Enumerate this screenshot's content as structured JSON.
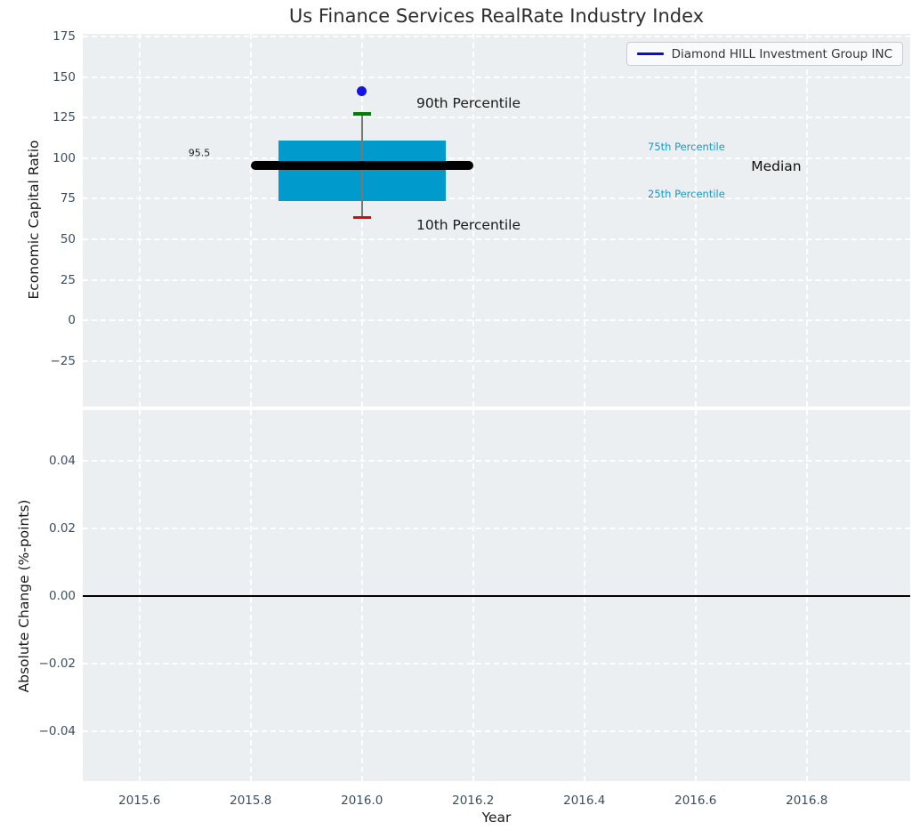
{
  "title": "Us Finance Services RealRate Industry Index",
  "legend": {
    "label": "Diamond HILL Investment Group INC",
    "line_color": "#0b0bdd"
  },
  "colors": {
    "plot_bg": "#eceff1",
    "grid": "#ffffff",
    "tick_label": "#3b4e60",
    "axis_label": "#1a1a1a",
    "title": "#2d2d2d",
    "box_fill": "#019ACD",
    "median_line": "#000000",
    "p90_cap": "#008000",
    "p10_cap": "#ee0000",
    "whisker_stem": "#777777",
    "company_marker": "#1414e6",
    "zero_line": "#000000",
    "percentile_label": "#1899c4"
  },
  "chart_data": [
    {
      "type": "box",
      "title": "Us Finance Services RealRate Industry Index",
      "ylabel": "Economic Capital Ratio",
      "ylim": [
        -53,
        176.6
      ],
      "yticks": [
        175,
        150,
        125,
        100,
        75,
        50,
        25,
        0,
        -25
      ],
      "ytick_labels": [
        "175",
        "150",
        "125",
        "100",
        "75",
        "50",
        "25",
        "0",
        "−25"
      ],
      "xlim": [
        2015.498,
        2016.986
      ],
      "grid": true,
      "legend_position": "upper right",
      "series": {
        "name": "Diamond HILL Investment Group INC",
        "x": 2016.0,
        "company_value": 141.5,
        "median": 95.5,
        "median_label": "95.5",
        "p10": 63.5,
        "p25": 73.5,
        "p75": 111,
        "p90": 127.5,
        "box_halfwidth": 0.15,
        "median_halfwidth": 0.2,
        "cap_halfwidth": 0.016
      },
      "annotations": [
        {
          "text": "90th Percentile",
          "x": 2016.098,
          "y": 134,
          "size": 15.5,
          "color": "#1a1a1a"
        },
        {
          "text": "10th Percentile",
          "x": 2016.098,
          "y": 59,
          "size": 15.5,
          "color": "#1a1a1a"
        },
        {
          "text": "75th Percentile",
          "x": 2016.514,
          "y": 107,
          "size": 11.5,
          "color": "#1899c4"
        },
        {
          "text": "25th Percentile",
          "x": 2016.514,
          "y": 78,
          "size": 11.5,
          "color": "#1899c4"
        },
        {
          "text": "Median",
          "x": 2016.7,
          "y": 95,
          "size": 15.5,
          "color": "#111111"
        },
        {
          "text": "95.5",
          "x": 2015.688,
          "y": 103,
          "size": 11,
          "color": "#222222"
        }
      ]
    },
    {
      "type": "line",
      "ylabel": "Absolute Change (%-points)",
      "xlabel": "Year",
      "ylim": [
        -0.0547,
        0.055
      ],
      "yticks": [
        0.04,
        0.02,
        0.0,
        -0.02,
        -0.04
      ],
      "ytick_labels": [
        "0.04",
        "0.02",
        "0.00",
        "−0.02",
        "−0.04"
      ],
      "xlim": [
        2015.498,
        2016.986
      ],
      "xticks": [
        2015.6,
        2015.8,
        2016.0,
        2016.2,
        2016.4,
        2016.6,
        2016.8
      ],
      "xtick_labels": [
        "2015.6",
        "2015.8",
        "2016.0",
        "2016.2",
        "2016.4",
        "2016.6",
        "2016.8"
      ],
      "zero_line": 0.0,
      "grid": true,
      "series": []
    }
  ]
}
